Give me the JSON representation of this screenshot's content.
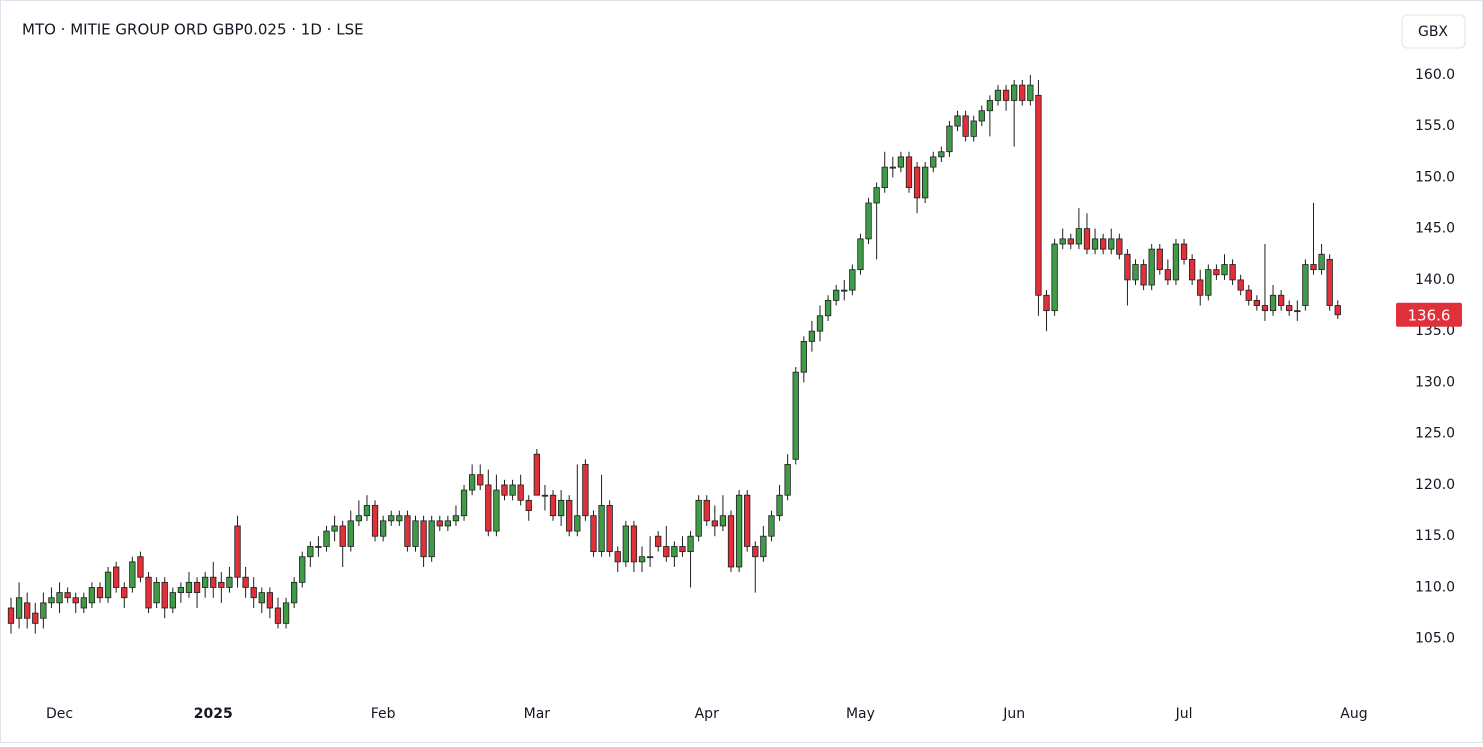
{
  "chart_data": {
    "type": "candlestick",
    "title": "MTO · MITIE GROUP ORD GBP0.025 · 1D · LSE",
    "currency": "GBX",
    "up_color": "#3f9b47",
    "down_color": "#e0313b",
    "outline_color": "#1e1e1e",
    "last_label_color": "#e0313b",
    "ylim": [
      100,
      167.3
    ],
    "yticks": [
      {
        "value": 105,
        "label": "105.0"
      },
      {
        "value": 110,
        "label": "110.0"
      },
      {
        "value": 115,
        "label": "115.0"
      },
      {
        "value": 120,
        "label": "120.0"
      },
      {
        "value": 125,
        "label": "125.0"
      },
      {
        "value": 130,
        "label": "130.0"
      },
      {
        "value": 135,
        "label": "135.0"
      },
      {
        "value": 140,
        "label": "140.0"
      },
      {
        "value": 145,
        "label": "145.0"
      },
      {
        "value": 150,
        "label": "150.0"
      },
      {
        "value": 155,
        "label": "155.0"
      },
      {
        "value": 160,
        "label": "160.0"
      }
    ],
    "categories": [
      null,
      null,
      null,
      null,
      null,
      null,
      "Dec",
      null,
      null,
      null,
      null,
      null,
      null,
      null,
      null,
      null,
      null,
      null,
      null,
      null,
      null,
      null,
      null,
      null,
      null,
      "2025",
      null,
      null,
      null,
      null,
      null,
      null,
      null,
      null,
      null,
      null,
      null,
      null,
      null,
      null,
      null,
      null,
      null,
      null,
      null,
      null,
      "Feb",
      null,
      null,
      null,
      null,
      null,
      null,
      null,
      null,
      null,
      null,
      null,
      null,
      null,
      null,
      null,
      null,
      null,
      null,
      "Mar",
      null,
      null,
      null,
      null,
      null,
      null,
      null,
      null,
      null,
      null,
      null,
      null,
      null,
      null,
      null,
      null,
      null,
      null,
      null,
      null,
      "Apr",
      null,
      null,
      null,
      null,
      null,
      null,
      null,
      null,
      null,
      null,
      null,
      null,
      null,
      null,
      null,
      null,
      null,
      null,
      "May",
      null,
      null,
      null,
      null,
      null,
      null,
      null,
      null,
      null,
      null,
      null,
      null,
      null,
      null,
      null,
      null,
      null,
      null,
      "Jun",
      null,
      null,
      null,
      null,
      null,
      null,
      null,
      null,
      null,
      null,
      null,
      null,
      null,
      null,
      null,
      null,
      null,
      null,
      null,
      null,
      "Jul",
      null,
      null,
      null,
      null,
      null,
      null,
      null,
      null,
      null,
      null,
      null,
      null,
      null,
      null,
      null,
      null,
      null,
      null,
      null,
      null,
      "Aug"
    ],
    "ohlc": [
      [
        108,
        109,
        105.5,
        106.5
      ],
      [
        107,
        110.5,
        106,
        109
      ],
      [
        108.5,
        109.5,
        106,
        107
      ],
      [
        107.5,
        108.5,
        105.5,
        106.5
      ],
      [
        107,
        109.5,
        106,
        108.5
      ],
      [
        108.5,
        110,
        108,
        109
      ],
      [
        108.5,
        110.5,
        107.5,
        109.5
      ],
      [
        109.5,
        110,
        108.5,
        109
      ],
      [
        109,
        109.5,
        107.5,
        108.5
      ],
      [
        108,
        109.5,
        107.5,
        109
      ],
      [
        108.5,
        110.5,
        108,
        110
      ],
      [
        110,
        110.5,
        108.5,
        109
      ],
      [
        109,
        112,
        108.5,
        111.5
      ],
      [
        112,
        112.5,
        109.5,
        110
      ],
      [
        110,
        110.5,
        108,
        109
      ],
      [
        110,
        113,
        109.5,
        112.5
      ],
      [
        113,
        113.5,
        110.5,
        111
      ],
      [
        111,
        111.5,
        107.5,
        108
      ],
      [
        108.5,
        111,
        108,
        110.5
      ],
      [
        110.5,
        111,
        107,
        108
      ],
      [
        108,
        110,
        107.5,
        109.5
      ],
      [
        109.5,
        110.5,
        108.5,
        110
      ],
      [
        109.5,
        111.5,
        109,
        110.5
      ],
      [
        110.5,
        111,
        108,
        109.5
      ],
      [
        110,
        111.5,
        109,
        111
      ],
      [
        111,
        112.5,
        109,
        110
      ],
      [
        110.5,
        111.5,
        108.5,
        110
      ],
      [
        110,
        112,
        109.5,
        111
      ],
      [
        116,
        117,
        110,
        111
      ],
      [
        111,
        112,
        109,
        110
      ],
      [
        110,
        111,
        108,
        109
      ],
      [
        108.5,
        110,
        107.5,
        109.5
      ],
      [
        109.5,
        110,
        107,
        108
      ],
      [
        108,
        109,
        106,
        106.5
      ],
      [
        106.5,
        109,
        106,
        108.5
      ],
      [
        108.5,
        111,
        108,
        110.5
      ],
      [
        110.5,
        113.5,
        110,
        113
      ],
      [
        113,
        114.5,
        112,
        114
      ],
      [
        114,
        115,
        113,
        114
      ],
      [
        114,
        116,
        113.5,
        115.5
      ],
      [
        115.5,
        117,
        114.5,
        116
      ],
      [
        116,
        116.5,
        112,
        114
      ],
      [
        114,
        117.5,
        113.5,
        116.5
      ],
      [
        116.5,
        118.5,
        116,
        117
      ],
      [
        117,
        119,
        116.5,
        118
      ],
      [
        118,
        118.5,
        114.5,
        115
      ],
      [
        115,
        117,
        114.5,
        116.5
      ],
      [
        116.5,
        117.5,
        116,
        117
      ],
      [
        116.5,
        117.5,
        116,
        117
      ],
      [
        117,
        117.5,
        113.5,
        114
      ],
      [
        114,
        117,
        113.5,
        116.5
      ],
      [
        116.5,
        117,
        112,
        113
      ],
      [
        113,
        117,
        112.5,
        116.5
      ],
      [
        116.5,
        117,
        115.5,
        116
      ],
      [
        116,
        117,
        115.5,
        116.5
      ],
      [
        116.5,
        118,
        116,
        117
      ],
      [
        117,
        120,
        116.5,
        119.5
      ],
      [
        119.5,
        122,
        119,
        121
      ],
      [
        121,
        122,
        119.5,
        120
      ],
      [
        120,
        121.5,
        115,
        115.5
      ],
      [
        115.5,
        121,
        115,
        119.5
      ],
      [
        120,
        120.5,
        118.5,
        119
      ],
      [
        119,
        120.5,
        118.5,
        120
      ],
      [
        120,
        121,
        118,
        118.5
      ],
      [
        118.5,
        119,
        116.5,
        117.5
      ],
      [
        123,
        123.5,
        119,
        119
      ],
      [
        119,
        120,
        117.5,
        119
      ],
      [
        119,
        119.5,
        116.5,
        117
      ],
      [
        117,
        119.5,
        116,
        118.5
      ],
      [
        118.5,
        119,
        115,
        115.5
      ],
      [
        115.5,
        122,
        115,
        117
      ],
      [
        122,
        122.5,
        116.5,
        117
      ],
      [
        117,
        117.5,
        113,
        113.5
      ],
      [
        113.5,
        121,
        113,
        118
      ],
      [
        118,
        118.5,
        113,
        113.5
      ],
      [
        113.5,
        114,
        111.5,
        112.5
      ],
      [
        112.5,
        116.5,
        112,
        116
      ],
      [
        116,
        116.5,
        111.5,
        112.5
      ],
      [
        112.5,
        114,
        111.5,
        113
      ],
      [
        113,
        115,
        112,
        113
      ],
      [
        115,
        115.5,
        113.5,
        114
      ],
      [
        114,
        116,
        112.5,
        113
      ],
      [
        113,
        114.5,
        112,
        114
      ],
      [
        114,
        115,
        113,
        113.5
      ],
      [
        113.5,
        115.5,
        110,
        115
      ],
      [
        115,
        119,
        114.5,
        118.5
      ],
      [
        118.5,
        119,
        116,
        116.5
      ],
      [
        116.5,
        118,
        115,
        116
      ],
      [
        116,
        119,
        115.5,
        117
      ],
      [
        117,
        117.5,
        111.5,
        112
      ],
      [
        112,
        119.5,
        111.5,
        119
      ],
      [
        119,
        119.5,
        113.5,
        114
      ],
      [
        114,
        114.5,
        109.5,
        113
      ],
      [
        113,
        116,
        112.5,
        115
      ],
      [
        115,
        117.5,
        114.5,
        117
      ],
      [
        117,
        120,
        116.5,
        119
      ],
      [
        119,
        123,
        118.5,
        122
      ],
      [
        122.5,
        131.5,
        122,
        131
      ],
      [
        131,
        134.5,
        130,
        134
      ],
      [
        134,
        136,
        133,
        135
      ],
      [
        135,
        137.5,
        134,
        136.5
      ],
      [
        136.5,
        138.5,
        136,
        138
      ],
      [
        138,
        139.5,
        137.5,
        139
      ],
      [
        139,
        140,
        138,
        139
      ],
      [
        139,
        141.5,
        138.5,
        141
      ],
      [
        141,
        144.5,
        140.5,
        144
      ],
      [
        144,
        148,
        143.5,
        147.5
      ],
      [
        147.5,
        149.5,
        142,
        149
      ],
      [
        149,
        152.5,
        148.5,
        151
      ],
      [
        151,
        152,
        150,
        151
      ],
      [
        151,
        152.5,
        150.5,
        152
      ],
      [
        152,
        152.5,
        148.5,
        149
      ],
      [
        151,
        151.5,
        146.5,
        148
      ],
      [
        148,
        151.5,
        147.5,
        151
      ],
      [
        151,
        152.5,
        150.5,
        152
      ],
      [
        152,
        153,
        151.5,
        152.5
      ],
      [
        152.5,
        155.5,
        152,
        155
      ],
      [
        155,
        156.5,
        154.5,
        156
      ],
      [
        156,
        156.5,
        153.5,
        154
      ],
      [
        154,
        156,
        153.5,
        155.5
      ],
      [
        155.5,
        157,
        155,
        156.5
      ],
      [
        156.5,
        158,
        154,
        157.5
      ],
      [
        157.5,
        159,
        157,
        158.5
      ],
      [
        158.5,
        159,
        156.5,
        157.5
      ],
      [
        157.5,
        159.5,
        153,
        159
      ],
      [
        159,
        159.5,
        157,
        157.5
      ],
      [
        157.5,
        160,
        157,
        159
      ],
      [
        158,
        159.5,
        136.5,
        138.5
      ],
      [
        138.5,
        139,
        135,
        137
      ],
      [
        137,
        144,
        136.5,
        143.5
      ],
      [
        143.5,
        145,
        143,
        144
      ],
      [
        144,
        144.5,
        143,
        143.5
      ],
      [
        143.5,
        147,
        143,
        145
      ],
      [
        145,
        146.5,
        142.5,
        143
      ],
      [
        143,
        145,
        142.5,
        144
      ],
      [
        144,
        144.5,
        142.5,
        143
      ],
      [
        143,
        145,
        142.5,
        144
      ],
      [
        144,
        144.5,
        142,
        142.5
      ],
      [
        142.5,
        143,
        137.5,
        140
      ],
      [
        140,
        142,
        139.5,
        141.5
      ],
      [
        141.5,
        142,
        139,
        139.5
      ],
      [
        139.5,
        143.5,
        139,
        143
      ],
      [
        143,
        143.5,
        140.5,
        141
      ],
      [
        141,
        142,
        139.5,
        140
      ],
      [
        140,
        144,
        139.5,
        143.5
      ],
      [
        143.5,
        144,
        141.5,
        142
      ],
      [
        142,
        142.5,
        139.5,
        140
      ],
      [
        140,
        141,
        137.5,
        138.5
      ],
      [
        138.5,
        141.5,
        138,
        141
      ],
      [
        141,
        141.5,
        140,
        140.5
      ],
      [
        140.5,
        142.5,
        140,
        141.5
      ],
      [
        141.5,
        142,
        139.5,
        140
      ],
      [
        140,
        140.5,
        138.5,
        139
      ],
      [
        139,
        139.5,
        137.5,
        138
      ],
      [
        138,
        138.5,
        137,
        137.5
      ],
      [
        137.5,
        143.5,
        136,
        137
      ],
      [
        137,
        139.5,
        136.5,
        138.5
      ],
      [
        138.5,
        139,
        137,
        137.5
      ],
      [
        137.5,
        138,
        136.5,
        137
      ],
      [
        137,
        138,
        136,
        137
      ],
      [
        137.5,
        142,
        137,
        141.5
      ],
      [
        141.5,
        147.5,
        140.5,
        141
      ],
      [
        141,
        143.5,
        140.5,
        142.5
      ],
      [
        142,
        142.5,
        137,
        137.5
      ],
      [
        137.5,
        138,
        136.2,
        136.6
      ],
      null,
      null,
      null
    ]
  }
}
